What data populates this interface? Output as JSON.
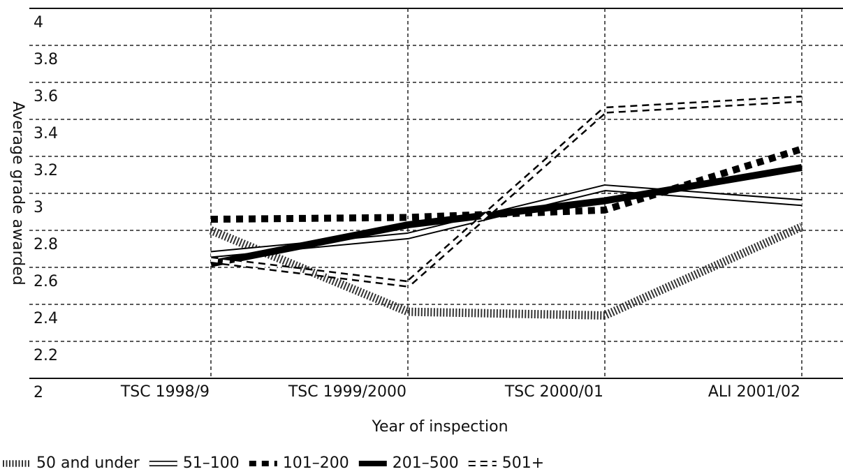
{
  "chart_data": {
    "type": "line",
    "x_label": "Year of inspection",
    "y_label": "Average grade awarded",
    "categories": [
      "TSC 1998/9",
      "TSC 1999/2000",
      "TSC 2000/01",
      "ALI 2001/02"
    ],
    "ylim": [
      2,
      4
    ],
    "yticks": [
      2,
      2.2,
      2.4,
      2.6,
      2.8,
      3,
      3.2,
      3.4,
      3.6,
      3.8,
      4
    ],
    "grid": true,
    "legend": "bottom",
    "series": [
      {
        "name": "50 and under",
        "color": "#333333",
        "style": "hatched",
        "values": [
          2.8,
          2.36,
          2.34,
          2.82
        ]
      },
      {
        "name": "51–100",
        "color": "#000000",
        "style": "outline",
        "values": [
          2.67,
          2.77,
          3.03,
          2.95
        ]
      },
      {
        "name": "101–200",
        "color": "#000000",
        "style": "dashed",
        "values": [
          2.86,
          2.87,
          2.91,
          3.24
        ]
      },
      {
        "name": "201–500",
        "color": "#000000",
        "style": "solid",
        "values": [
          2.62,
          2.83,
          2.96,
          3.14
        ]
      },
      {
        "name": "501+",
        "color": "#000000",
        "style": "hollow-dashed",
        "values": [
          2.64,
          2.51,
          3.45,
          3.51
        ]
      }
    ]
  }
}
